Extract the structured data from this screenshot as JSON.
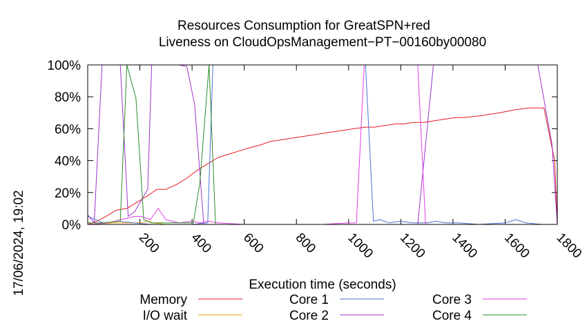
{
  "chart_data": {
    "type": "line",
    "title": "Resources Consumption for GreatSPN+red",
    "subtitle": "Liveness on CloudOpsManagement−PT−00160by00080",
    "xlabel": "Execution time (seconds)",
    "ylabel": "",
    "side_label": "17/06/2024, 19:02",
    "xlim": [
      0,
      1800
    ],
    "ylim": [
      0,
      100
    ],
    "x_ticks": [
      200,
      400,
      600,
      800,
      1000,
      1200,
      1400,
      1600,
      1800
    ],
    "y_ticks": [
      0,
      20,
      40,
      60,
      80,
      100
    ],
    "y_tick_labels": [
      "0%",
      "20%",
      "40%",
      "60%",
      "80%",
      "100%"
    ],
    "grid": false,
    "legend_position": "bottom",
    "series": [
      {
        "name": "Memory",
        "color": "#e41a1c",
        "points": [
          [
            0,
            0
          ],
          [
            35,
            2
          ],
          [
            70,
            5
          ],
          [
            110,
            9
          ],
          [
            150,
            10
          ],
          [
            190,
            14
          ],
          [
            230,
            18
          ],
          [
            265,
            22
          ],
          [
            300,
            22
          ],
          [
            340,
            25
          ],
          [
            380,
            29
          ],
          [
            420,
            34
          ],
          [
            460,
            38
          ],
          [
            500,
            42
          ],
          [
            540,
            44
          ],
          [
            580,
            46
          ],
          [
            620,
            48
          ],
          [
            665,
            50
          ],
          [
            700,
            52
          ],
          [
            740,
            53
          ],
          [
            780,
            54
          ],
          [
            820,
            55
          ],
          [
            860,
            56
          ],
          [
            900,
            57
          ],
          [
            940,
            58
          ],
          [
            980,
            59
          ],
          [
            1020,
            60
          ],
          [
            1065,
            61
          ],
          [
            1100,
            61
          ],
          [
            1140,
            62
          ],
          [
            1180,
            63
          ],
          [
            1210,
            63
          ],
          [
            1250,
            64
          ],
          [
            1290,
            64
          ],
          [
            1330,
            65
          ],
          [
            1370,
            66
          ],
          [
            1410,
            67
          ],
          [
            1440,
            67
          ],
          [
            1500,
            68
          ],
          [
            1580,
            70
          ],
          [
            1640,
            72
          ],
          [
            1690,
            73
          ],
          [
            1725,
            73
          ],
          [
            1749,
            73
          ],
          [
            1790,
            40
          ],
          [
            1800,
            0
          ]
        ]
      },
      {
        "name": "I/O wait",
        "color": "#f0a000",
        "points": [
          [
            0,
            0
          ],
          [
            100,
            1
          ],
          [
            150,
            1
          ],
          [
            200,
            1
          ],
          [
            235,
            2
          ],
          [
            250,
            1
          ],
          [
            300,
            0
          ],
          [
            400,
            0
          ],
          [
            500,
            0
          ],
          [
            600,
            0
          ],
          [
            700,
            0
          ],
          [
            800,
            0
          ],
          [
            900,
            0
          ],
          [
            1000,
            0
          ],
          [
            1100,
            0
          ],
          [
            1200,
            0
          ],
          [
            1300,
            0
          ],
          [
            1400,
            0
          ],
          [
            1500,
            0
          ],
          [
            1600,
            0
          ],
          [
            1700,
            0
          ],
          [
            1800,
            0
          ]
        ]
      },
      {
        "name": "Core 1",
        "color": "#4a6fd0",
        "points": [
          [
            0,
            5
          ],
          [
            60,
            1
          ],
          [
            120,
            2
          ],
          [
            175,
            1
          ],
          [
            245,
            0
          ],
          [
            400,
            0
          ],
          [
            460,
            1
          ],
          [
            480,
            100
          ],
          [
            565,
            100
          ],
          [
            1065,
            100
          ],
          [
            1095,
            2
          ],
          [
            1120,
            3
          ],
          [
            1155,
            1
          ],
          [
            1200,
            2
          ],
          [
            1240,
            1
          ],
          [
            1300,
            1
          ],
          [
            1335,
            2
          ],
          [
            1370,
            1
          ],
          [
            1420,
            1
          ],
          [
            1500,
            0
          ],
          [
            1600,
            1
          ],
          [
            1640,
            3
          ],
          [
            1680,
            1
          ],
          [
            1740,
            0
          ],
          [
            1800,
            0
          ]
        ]
      },
      {
        "name": "Core 2",
        "color": "#9932cc",
        "points": [
          [
            0,
            6
          ],
          [
            25,
            1
          ],
          [
            55,
            100
          ],
          [
            125,
            100
          ],
          [
            155,
            5
          ],
          [
            180,
            8
          ],
          [
            230,
            22
          ],
          [
            245,
            100
          ],
          [
            350,
            100
          ],
          [
            380,
            99
          ],
          [
            410,
            75
          ],
          [
            445,
            0
          ],
          [
            500,
            0
          ],
          [
            700,
            0
          ],
          [
            900,
            0
          ],
          [
            1100,
            0
          ],
          [
            1200,
            0
          ],
          [
            1265,
            0
          ],
          [
            1325,
            100
          ],
          [
            1370,
            100
          ],
          [
            1400,
            100
          ],
          [
            1600,
            100
          ],
          [
            1725,
            100
          ],
          [
            1780,
            50
          ],
          [
            1800,
            0
          ]
        ]
      },
      {
        "name": "Core 3",
        "color": "#e23be2",
        "points": [
          [
            0,
            0
          ],
          [
            80,
            1
          ],
          [
            125,
            3
          ],
          [
            155,
            4
          ],
          [
            180,
            5
          ],
          [
            205,
            5
          ],
          [
            240,
            3
          ],
          [
            270,
            10
          ],
          [
            300,
            3
          ],
          [
            350,
            1
          ],
          [
            400,
            2
          ],
          [
            430,
            1
          ],
          [
            460,
            2
          ],
          [
            500,
            1
          ],
          [
            600,
            0
          ],
          [
            700,
            0
          ],
          [
            800,
            0
          ],
          [
            900,
            0
          ],
          [
            1000,
            1
          ],
          [
            1030,
            1
          ],
          [
            1060,
            100
          ],
          [
            1100,
            100
          ],
          [
            1190,
            100
          ],
          [
            1230,
            100
          ],
          [
            1265,
            100
          ],
          [
            1295,
            0
          ],
          [
            1340,
            0
          ],
          [
            1400,
            0
          ],
          [
            1500,
            0
          ],
          [
            1600,
            0
          ],
          [
            1700,
            0
          ],
          [
            1800,
            0
          ]
        ]
      },
      {
        "name": "Core 4",
        "color": "#2a8a2a",
        "points": [
          [
            0,
            1
          ],
          [
            60,
            1
          ],
          [
            125,
            2
          ],
          [
            150,
            100
          ],
          [
            185,
            79
          ],
          [
            215,
            3
          ],
          [
            245,
            1
          ],
          [
            300,
            1
          ],
          [
            345,
            1
          ],
          [
            405,
            1
          ],
          [
            430,
            26
          ],
          [
            465,
            100
          ],
          [
            490,
            0
          ],
          [
            560,
            0
          ],
          [
            700,
            0
          ],
          [
            800,
            0
          ],
          [
            900,
            0
          ],
          [
            1000,
            0
          ],
          [
            1100,
            0
          ],
          [
            1200,
            0
          ],
          [
            1300,
            0
          ],
          [
            1400,
            0
          ],
          [
            1500,
            0
          ],
          [
            1600,
            0
          ],
          [
            1700,
            0
          ],
          [
            1800,
            0
          ]
        ]
      }
    ]
  }
}
